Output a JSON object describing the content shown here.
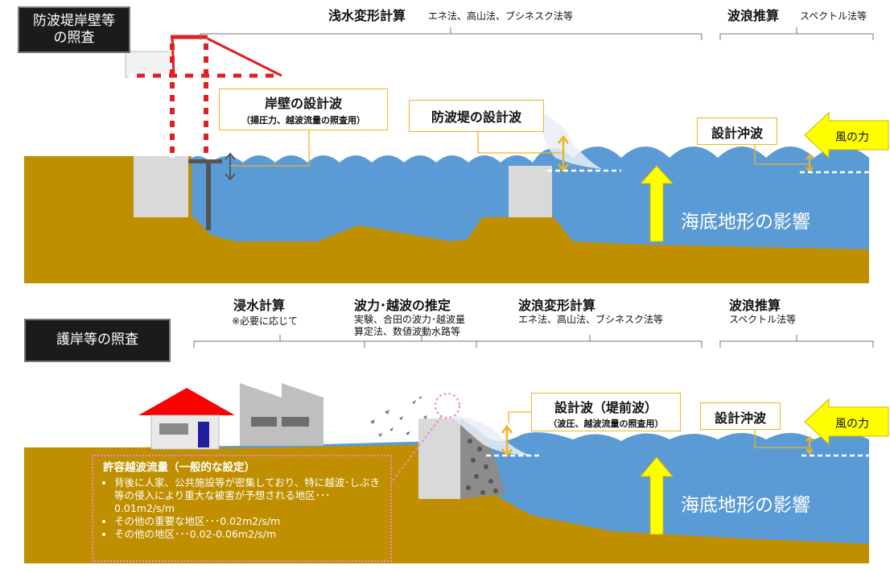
{
  "top": {
    "title": "防波堤岸壁等\nの照査",
    "shallow_water_title": "浅水変形計算",
    "shallow_water_methods": "エネ法、高山法、ブシネスク法等",
    "wave_forecast_title": "波浪推算",
    "wave_forecast_methods": "スペクトル法等",
    "quay_wave_title": "岸壁の設計波",
    "quay_wave_sub": "（揚圧力、越波流量の照査用）",
    "breakwater_wave": "防波堤の設計波",
    "offshore_wave": "設計沖波",
    "wind": "風の力",
    "seabed": "海底地形の影響"
  },
  "bottom": {
    "title": "護岸等の照査",
    "inundation_title": "浸水計算",
    "inundation_note": "※必要に応じて",
    "overtopping_title": "波力･越波の推定",
    "overtopping_methods_1": "実験、合田の波力･越波量",
    "overtopping_methods_2": "算定法、数値波動水路等",
    "deformation_title": "波浪変形計算",
    "deformation_methods": "エネ法、高山法、ブシネスク法等",
    "wave_forecast_title": "波浪推算",
    "wave_forecast_methods": "スペクトル法等",
    "design_wave_title": "設計波（堤前波）",
    "design_wave_sub": "（波圧、越波流量の照査用）",
    "offshore_wave": "設計沖波",
    "wind": "風の力",
    "seabed": "海底地形の影響",
    "allowable": {
      "title": "許容越波流量（一般的な設定）",
      "items": [
        "背後に人家、公共施設等が密集しており、特に越波･しぶき等の侵入により重大な被害が予想される地区･･･0.01m2/s/m",
        "その他の重要な地区･･･0.02m2/s/m",
        "その他の地区･･･0.02-0.06m2/s/m"
      ]
    }
  },
  "colors": {
    "sea": "#5b9bd5",
    "ground": "#bf8f00",
    "arrow_yellow": "#ffff00",
    "accent_orange": "#f0b323",
    "structure_gray": "#d9d9d9",
    "crane_red": "#e02020",
    "house_roof": "#ff0000",
    "door_blue": "#1f1fa0",
    "dotted_pink": "#ee88cc"
  },
  "icons": [
    "crane-icon",
    "house-icon",
    "factory-icon",
    "wind-arrow-icon",
    "up-arrow-icon",
    "double-arrow-icon"
  ]
}
